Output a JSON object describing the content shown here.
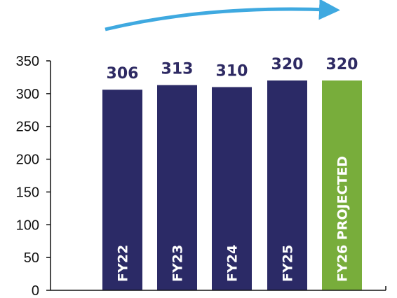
{
  "chart_data": {
    "type": "bar",
    "categories": [
      "FY22",
      "FY23",
      "FY24",
      "FY25",
      "FY26 PROJECTED"
    ],
    "values": [
      306,
      313,
      310,
      320,
      320
    ],
    "data_labels": [
      "306",
      "313",
      "310",
      "320",
      "320"
    ],
    "yticks": [
      "0",
      "50",
      "100",
      "150",
      "200",
      "250",
      "300",
      "350"
    ],
    "ylim": [
      0,
      350
    ],
    "colors": {
      "actual": "#2b2a66",
      "projected": "#78ad3b",
      "label": "#2e2a63",
      "trend_arrow": "#3fa9e0",
      "axis": "#111111"
    },
    "grid": false,
    "trend_arrow": "increasing",
    "category_label_orientation": "vertical-inside-bar"
  }
}
